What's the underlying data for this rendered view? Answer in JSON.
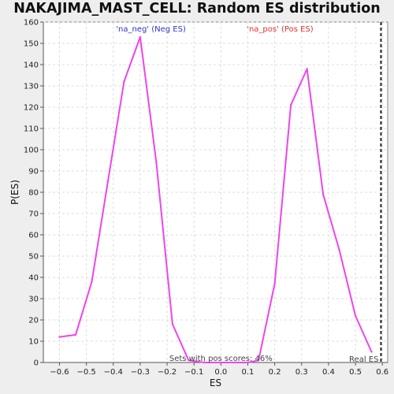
{
  "chart_data": {
    "type": "line",
    "title": "NAKAJIMA_MAST_CELL: Random ES distribution",
    "xlabel": "ES",
    "ylabel": "P(ES)",
    "xlim": [
      -0.66,
      0.62
    ],
    "ylim": [
      0,
      160
    ],
    "xticks": [
      -0.6,
      -0.5,
      -0.4,
      -0.3,
      -0.2,
      -0.1,
      0.0,
      0.1,
      0.2,
      0.3,
      0.4,
      0.5,
      0.6
    ],
    "yticks": [
      0,
      10,
      20,
      30,
      40,
      50,
      60,
      70,
      80,
      90,
      100,
      110,
      120,
      130,
      140,
      150,
      160
    ],
    "grid": true,
    "color": "#ee44ee",
    "series": [
      {
        "x": [
          -0.6,
          -0.54,
          -0.48,
          -0.42,
          -0.36,
          -0.3,
          -0.24,
          -0.18,
          -0.12,
          -0.06,
          0.0,
          0.06,
          0.1,
          0.14,
          0.2,
          0.26,
          0.32,
          0.38,
          0.44,
          0.5,
          0.56
        ],
        "y": [
          12,
          13,
          38,
          85,
          132,
          153,
          94,
          18,
          1,
          0,
          0,
          0,
          0,
          1,
          37,
          121,
          138,
          79,
          53,
          22,
          5
        ]
      }
    ],
    "annotations": {
      "neg_label": "'na_neg' (Neg ES)",
      "neg_color": "#3333cc",
      "pos_label": "'na_pos' (Pos ES)",
      "pos_color": "#e03030",
      "pos_scores_text": "Sets with pos scores: 46%",
      "real_es_label": "Real ES",
      "real_es_value": 0.595
    }
  }
}
